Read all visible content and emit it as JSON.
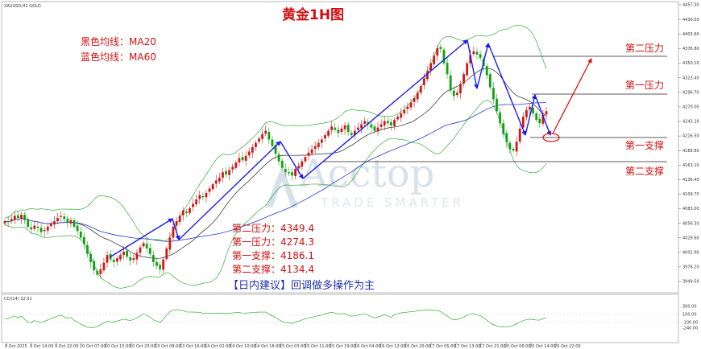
{
  "header": {
    "symbol_info": "XAUUSD,H1 GOLD",
    "title": "黄金1H图"
  },
  "legend": {
    "ma20": "黑色均线：MA20",
    "ma60": "蓝色均线：MA60"
  },
  "levels": {
    "r2_label": "第二压力",
    "r1_label": "第一压力",
    "s1_label": "第一支撑",
    "s2_label": "第二支撑"
  },
  "summary": {
    "r2": "第二压力：4349.4",
    "r1": "第一压力：4274.3",
    "s1": "第一支撑：4186.1",
    "s2": "第二支撑：4134.4",
    "advice": "【日内建议】回调做多操作为主"
  },
  "watermark": {
    "brand": "Acctop",
    "tagline": "TRADE SMARTER"
  },
  "indicator": {
    "label": "CCI(14) 32.01",
    "ticks": [
      "300.00",
      "100.00",
      "-100.00",
      "-240.00"
    ]
  },
  "colors": {
    "bull": "#d01818",
    "bear": "#10a010",
    "ma20": "#222222",
    "ma60": "#2a3ad0",
    "boll": "#14a014",
    "arrow_blue": "#1c1cf0",
    "arrow_red": "#e01010",
    "level_line": "#222222"
  },
  "chart_data": {
    "type": "candlestick",
    "title": "黄金1H图",
    "y_ticks": [
      "4457.30",
      "4430.50",
      "4403.60",
      "4376.80",
      "4350.10",
      "4323.40",
      "4296.70",
      "4270.00",
      "4243.20",
      "4216.50",
      "4189.80",
      "4163.10",
      "4136.40",
      "4109.70",
      "4083.00",
      "4056.30",
      "4029.60",
      "4002.90",
      "3976.20",
      "3949.50"
    ],
    "x_ticks": [
      "8 Oct 2025",
      "9 Oct 14:00",
      "9 Oct 22:00",
      "10 Oct 07:00",
      "10 Oct 15:00",
      "10 Oct 23:00",
      "13 Oct 08:00",
      "13 Oct 16:00",
      "14 Oct 02:00",
      "14 Oct 10:00",
      "14 Oct 18:00",
      "15 Oct 03:00",
      "15 Oct 11:00",
      "15 Oct 19:00",
      "16 Oct 04:00",
      "16 Oct 12:00",
      "16 Oct 20:00",
      "17 Oct 05:00",
      "17 Oct 13:00",
      "17 Oct 21:00",
      "20 Oct 06:00",
      "20 Oct 14:00",
      "20 Oct 22:00"
    ],
    "levels": {
      "r2": 4349.4,
      "r1": 4274.3,
      "s1": 4186.1,
      "s2": 4134.4
    },
    "series": [
      {
        "name": "MA20"
      },
      {
        "name": "MA60"
      }
    ],
    "close": [
      4060,
      4058,
      4064,
      4070,
      4066,
      4072,
      4062,
      4050,
      4045,
      4052,
      4048,
      4040,
      4044,
      4050,
      4056,
      4060,
      4066,
      4070,
      4064,
      4058,
      4062,
      4050,
      4042,
      4030,
      4018,
      4000,
      3985,
      3970,
      3962,
      3972,
      3984,
      3998,
      3990,
      3985,
      3992,
      3998,
      4004,
      3995,
      3988,
      3992,
      4002,
      4012,
      4020,
      4010,
      4000,
      3985,
      3978,
      3972,
      3990,
      4010,
      4030,
      4050,
      4060,
      4070,
      4080,
      4075,
      4084,
      4092,
      4100,
      4108,
      4104,
      4112,
      4120,
      4128,
      4135,
      4140,
      4150,
      4146,
      4154,
      4160,
      4168,
      4176,
      4172,
      4180,
      4188,
      4196,
      4204,
      4212,
      4220,
      4226,
      4210,
      4198,
      4184,
      4170,
      4158,
      4150,
      4148,
      4144,
      4156,
      4162,
      4170,
      4178,
      4186,
      4192,
      4198,
      4204,
      4210,
      4218,
      4226,
      4234,
      4228,
      4222,
      4230,
      4236,
      4224,
      4218,
      4226,
      4232,
      4238,
      4244,
      4238,
      4232,
      4226,
      4232,
      4238,
      4244,
      4240,
      4236,
      4246,
      4252,
      4258,
      4264,
      4270,
      4278,
      4286,
      4296,
      4308,
      4322,
      4336,
      4350,
      4364,
      4378,
      4376,
      4350,
      4330,
      4300,
      4290,
      4296,
      4312,
      4330,
      4350,
      4365,
      4372,
      4366,
      4360,
      4345,
      4328,
      4306,
      4284,
      4262,
      4240,
      4220,
      4205,
      4192,
      4190,
      4206,
      4230,
      4252,
      4264,
      4270,
      4258,
      4246,
      4240,
      4255,
      4262
    ]
  }
}
